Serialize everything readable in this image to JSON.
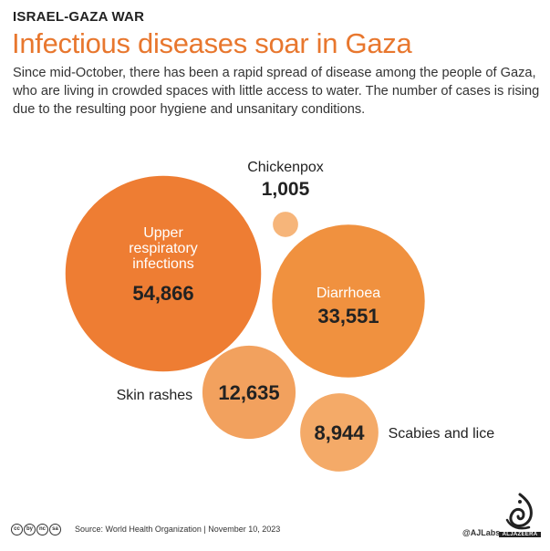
{
  "header": {
    "kicker": "ISRAEL-GAZA WAR",
    "title": "Infectious diseases soar in Gaza",
    "subtitle": "Since mid-October, there has been a rapid spread of disease among the people of Gaza, who are living in crowded spaces with little access to water. The number of cases is rising due to the resulting poor hygiene and unsanitary conditions."
  },
  "chart_data": {
    "type": "bubble",
    "unit": "cases",
    "items": [
      {
        "label": "Upper respiratory infections",
        "label_lines": [
          "Upper",
          "respiratory",
          "infections"
        ],
        "value": 54866,
        "value_text": "54,866",
        "label_position": "inside",
        "color": "#ee7d33"
      },
      {
        "label": "Chickenpox",
        "label_lines": [
          "Chickenpox"
        ],
        "value": 1005,
        "value_text": "1,005",
        "label_position": "above",
        "color": "#f6b57a"
      },
      {
        "label": "Diarrhoea",
        "label_lines": [
          "Diarrhoea"
        ],
        "value": 33551,
        "value_text": "33,551",
        "label_position": "inside",
        "color": "#f0913f"
      },
      {
        "label": "Skin rashes",
        "label_lines": [
          "Skin rashes"
        ],
        "value": 12635,
        "value_text": "12,635",
        "label_position": "left",
        "color": "#f2a15e"
      },
      {
        "label": "Scabies and lice",
        "label_lines": [
          "Scabies and lice"
        ],
        "value": 8944,
        "value_text": "8,944",
        "label_position": "right",
        "color": "#f4aa68"
      }
    ]
  },
  "footer": {
    "license_icons": [
      "cc",
      "by",
      "nc",
      "sa"
    ],
    "source": "Source:  World Health Organization  |  November 10, 2023",
    "credit": "@AJLabs",
    "logo_text": "ALJAZEERA"
  }
}
